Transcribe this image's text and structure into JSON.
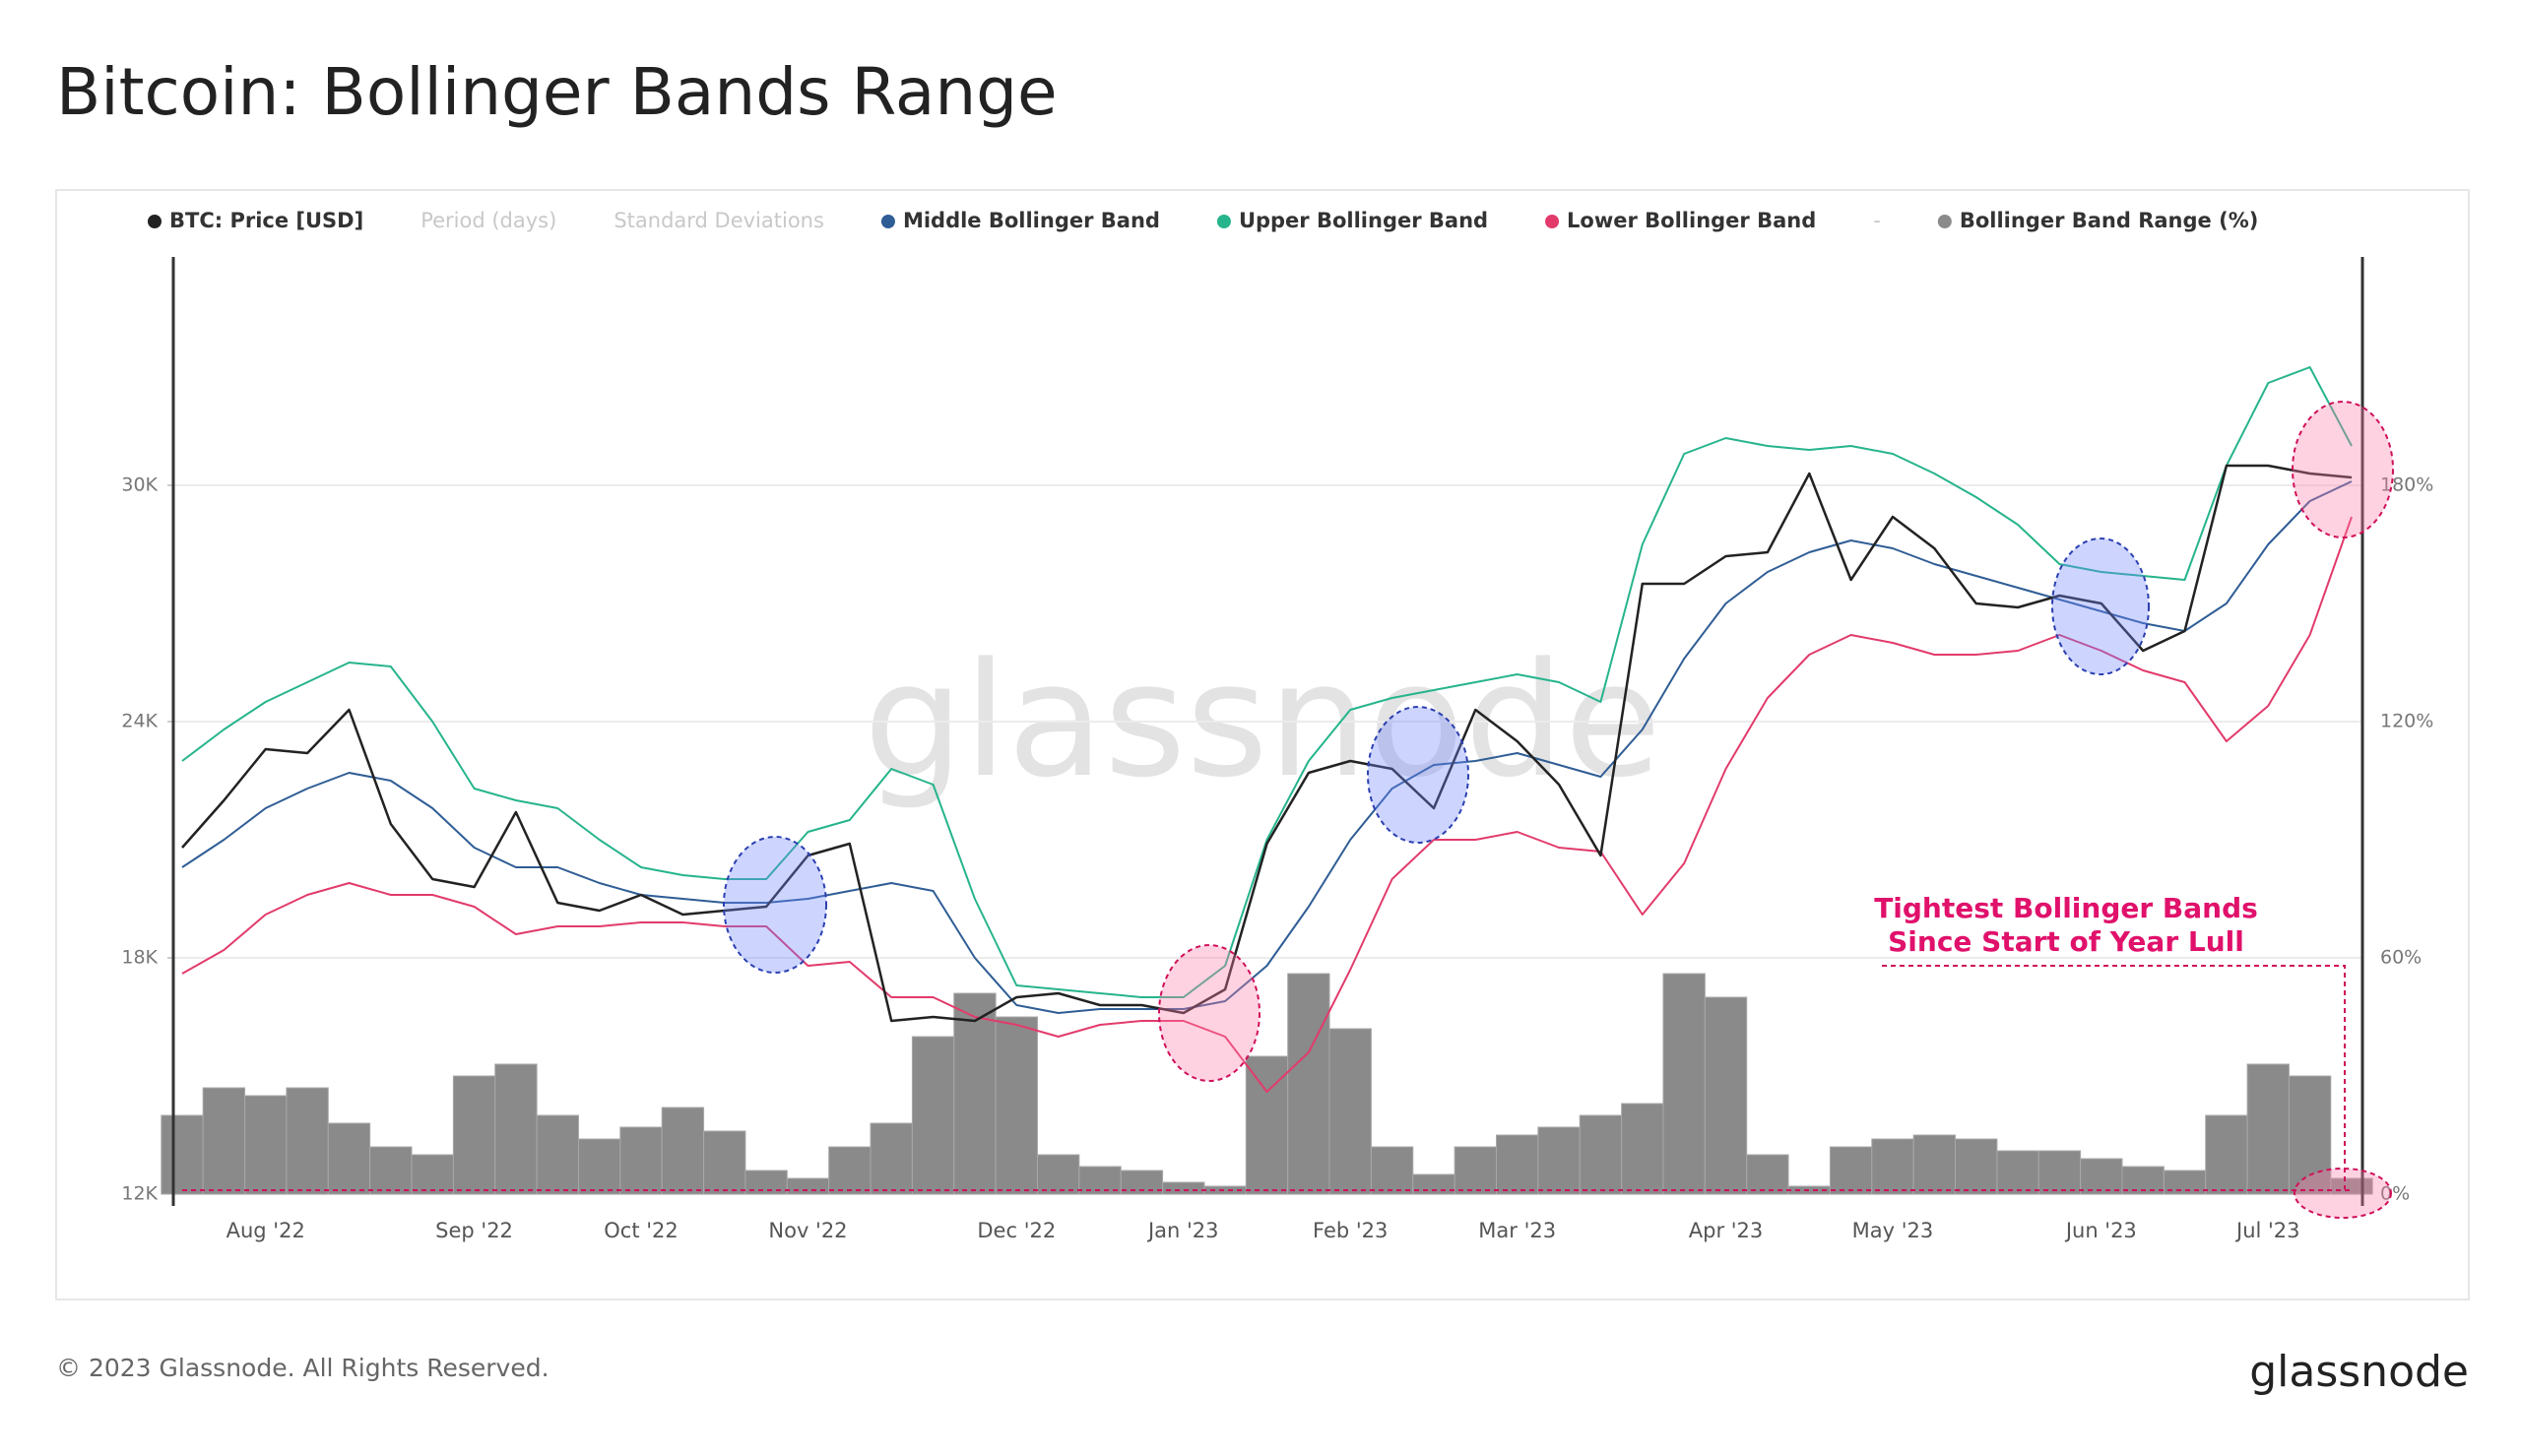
{
  "chart_data": {
    "type": "line",
    "title": "Bitcoin: Bollinger Bands Range",
    "categories": [
      null,
      null,
      "Aug '22",
      null,
      null,
      null,
      null,
      "Sep '22",
      null,
      null,
      null,
      "Oct '22",
      null,
      null,
      null,
      "Nov '22",
      null,
      null,
      null,
      null,
      "Dec '22",
      null,
      null,
      null,
      "Jan '23",
      null,
      null,
      null,
      "Feb '23",
      null,
      null,
      null,
      "Mar '23",
      null,
      null,
      null,
      null,
      "Apr '23",
      null,
      null,
      null,
      "May '23",
      null,
      null,
      null,
      null,
      "Jun '23",
      null,
      null,
      null,
      "Jul '23",
      null,
      null
    ],
    "series": [
      {
        "name": "BTC: Price [USD]",
        "color": "#222222",
        "values": [
          20800,
          22000,
          23300,
          23200,
          24300,
          21400,
          20000,
          19800,
          21700,
          19400,
          19200,
          19600,
          19100,
          19200,
          19300,
          20600,
          20900,
          16400,
          16500,
          16400,
          17000,
          17100,
          16800,
          16800,
          16600,
          17200,
          20900,
          22700,
          23000,
          22800,
          21800,
          24300,
          23500,
          22400,
          20600,
          27500,
          27500,
          28200,
          28300,
          30300,
          27600,
          29200,
          28400,
          27000,
          26900,
          27200,
          27000,
          25800,
          26300,
          30500,
          30500,
          30300,
          30200
        ]
      },
      {
        "name": "Period (days)",
        "inactive": true
      },
      {
        "name": "Standard Deviations",
        "inactive": true
      },
      {
        "name": "Middle Bollinger Band",
        "color": "#2f5d95",
        "values": [
          20300,
          21000,
          21800,
          22300,
          22700,
          22500,
          21800,
          20800,
          20300,
          20300,
          19900,
          19600,
          19500,
          19400,
          19400,
          19500,
          19700,
          19900,
          19700,
          18000,
          16800,
          16600,
          16700,
          16700,
          16700,
          16900,
          17800,
          19300,
          21000,
          22300,
          22900,
          23000,
          23200,
          22900,
          22600,
          23800,
          25600,
          27000,
          27800,
          28300,
          28600,
          28400,
          28000,
          27700,
          27400,
          27100,
          26800,
          26500,
          26300,
          27000,
          28500,
          29600,
          30100
        ]
      },
      {
        "name": "Upper Bollinger Band",
        "color": "#26b48c",
        "values": [
          23000,
          23800,
          24500,
          25000,
          25500,
          25400,
          24000,
          22300,
          22000,
          21800,
          21000,
          20300,
          20100,
          20000,
          20000,
          21200,
          21500,
          22800,
          22400,
          19500,
          17300,
          17200,
          17100,
          17000,
          17000,
          17800,
          21000,
          23000,
          24300,
          24600,
          24800,
          25000,
          25200,
          25000,
          24500,
          28500,
          30800,
          31200,
          31000,
          30900,
          31000,
          30800,
          30300,
          29700,
          29000,
          28000,
          27800,
          27700,
          27600,
          30500,
          32600,
          33000,
          31000
        ]
      },
      {
        "name": "Lower Bollinger Band",
        "color": "#e23b6b",
        "values": [
          17600,
          18200,
          19100,
          19600,
          19900,
          19600,
          19600,
          19300,
          18600,
          18800,
          18800,
          18900,
          18900,
          18800,
          18800,
          17800,
          17900,
          17000,
          17000,
          16500,
          16300,
          16000,
          16300,
          16400,
          16400,
          16000,
          14600,
          15600,
          17700,
          20000,
          21000,
          21000,
          21200,
          20800,
          20700,
          19100,
          20400,
          22800,
          24600,
          25700,
          26200,
          26000,
          25700,
          25700,
          25800,
          26200,
          25800,
          25300,
          25000,
          23500,
          24400,
          26200,
          29200
        ]
      },
      {
        "name": "-",
        "inactive": true
      },
      {
        "name": "Bollinger Band Range (%)",
        "color": "#8a8a8a",
        "type": "bar",
        "axis": "y2",
        "values": [
          20,
          27,
          25,
          27,
          18,
          12,
          10,
          30,
          33,
          20,
          14,
          17,
          22,
          16,
          6,
          4,
          12,
          18,
          40,
          51,
          45,
          10,
          7,
          6,
          3,
          2,
          35,
          56,
          42,
          12,
          5,
          12,
          15,
          17,
          20,
          23,
          56,
          50,
          10,
          2,
          12,
          14,
          15,
          14,
          11,
          11,
          9,
          7,
          6,
          20,
          33,
          30,
          4
        ]
      }
    ],
    "ylim": [
      11700,
      35800
    ],
    "yticks": [
      {
        "value": 12000,
        "label": "12K"
      },
      {
        "value": 18000,
        "label": "18K"
      },
      {
        "value": 24000,
        "label": "24K"
      },
      {
        "value": 30000,
        "label": "30K"
      }
    ],
    "y2lim": [
      -3,
      238
    ],
    "y2ticks": [
      {
        "value": 0,
        "label": "0%"
      },
      {
        "value": 60,
        "label": "60%"
      },
      {
        "value": 120,
        "label": "120%"
      },
      {
        "value": 180,
        "label": "180%"
      }
    ],
    "grid": true,
    "annotation": {
      "lines": [
        "Tightest Bollinger Bands",
        "Since Start of Year Lull"
      ],
      "color": "#e0116b"
    },
    "watermark": "glassnode"
  },
  "footer": {
    "copyright": "© 2023 Glassnode. All Rights Reserved.",
    "logo": "glassnode"
  }
}
